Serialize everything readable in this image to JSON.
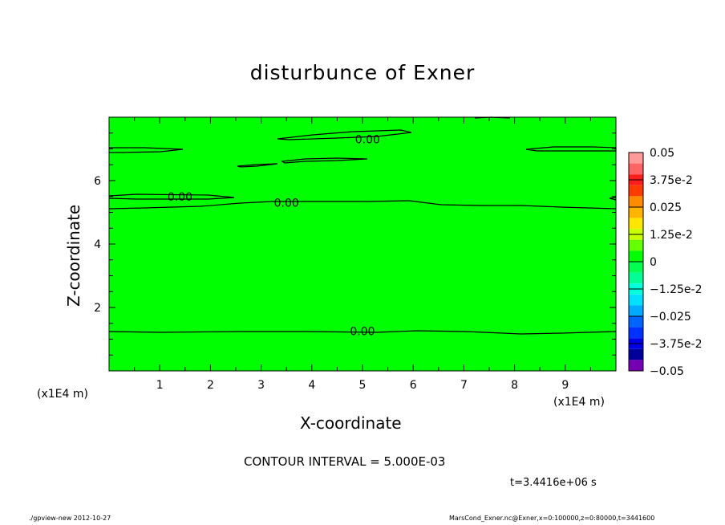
{
  "title": "disturbunce of Exner",
  "contour_interval_text": "CONTOUR INTERVAL = 5.000E-03",
  "time_text": "t=3.4416e+06 s",
  "footer_left": "./gpview-new  2012-10-27",
  "footer_right": "MarsCond_Exner.nc@Exner,x=0:100000,z=0:80000,t=3441600",
  "chart_data": {
    "type": "heatmap",
    "title": "disturbunce of Exner",
    "xlabel": "X-coordinate",
    "ylabel": "Z-coordinate",
    "x_unit": "(x1E4 m)",
    "xlim": [
      0,
      10
    ],
    "ylim": [
      0,
      8
    ],
    "x_ticks": [
      "1",
      "2",
      "3",
      "4",
      "5",
      "6",
      "7",
      "8",
      "9"
    ],
    "y_ticks": [
      "2",
      "4",
      "6"
    ],
    "field_value": 0,
    "fill_color": "#00ff00",
    "contour_labels": [
      {
        "text": "0.00",
        "x": 5.0,
        "y": 1.25
      },
      {
        "text": "0.00",
        "x": 3.5,
        "y": 5.3
      },
      {
        "text": "0.00",
        "x": 1.4,
        "y": 5.5
      },
      {
        "text": "0.00",
        "x": 5.1,
        "y": 7.3
      }
    ],
    "colorbar": {
      "labels": [
        "0.05",
        "3.75e-2",
        "0.025",
        "1.25e-2",
        "0",
        "−1.25e-2",
        "−0.025",
        "−3.75e-2",
        "−0.05"
      ],
      "bins": [
        {
          "range": [
            0.045,
            0.05
          ],
          "color": "#ff9a9a"
        },
        {
          "range": [
            0.04,
            0.045
          ],
          "color": "#ff6464"
        },
        {
          "range": [
            0.035,
            0.04
          ],
          "color": "#ff1e1e"
        },
        {
          "range": [
            0.03,
            0.035
          ],
          "color": "#ff3c00"
        },
        {
          "range": [
            0.025,
            0.03
          ],
          "color": "#ff8c00"
        },
        {
          "range": [
            0.02,
            0.025
          ],
          "color": "#ffb400"
        },
        {
          "range": [
            0.015,
            0.02
          ],
          "color": "#ffe600"
        },
        {
          "range": [
            0.01,
            0.015
          ],
          "color": "#c8ff00"
        },
        {
          "range": [
            0.005,
            0.01
          ],
          "color": "#64ff00"
        },
        {
          "range": [
            0,
            0.005
          ],
          "color": "#00ff00"
        },
        {
          "range": [
            -0.005,
            0
          ],
          "color": "#00ff50"
        },
        {
          "range": [
            -0.01,
            -0.005
          ],
          "color": "#00ff96"
        },
        {
          "range": [
            -0.015,
            -0.01
          ],
          "color": "#00ffdc"
        },
        {
          "range": [
            -0.02,
            -0.015
          ],
          "color": "#00e1ff"
        },
        {
          "range": [
            -0.025,
            -0.02
          ],
          "color": "#00aaff"
        },
        {
          "range": [
            -0.03,
            -0.025
          ],
          "color": "#0064ff"
        },
        {
          "range": [
            -0.035,
            -0.03
          ],
          "color": "#0032ff"
        },
        {
          "range": [
            -0.04,
            -0.035
          ],
          "color": "#0000e6"
        },
        {
          "range": [
            -0.045,
            -0.04
          ],
          "color": "#00009b"
        },
        {
          "range": [
            -0.05,
            -0.045
          ],
          "color": "#7800b4"
        }
      ]
    }
  }
}
